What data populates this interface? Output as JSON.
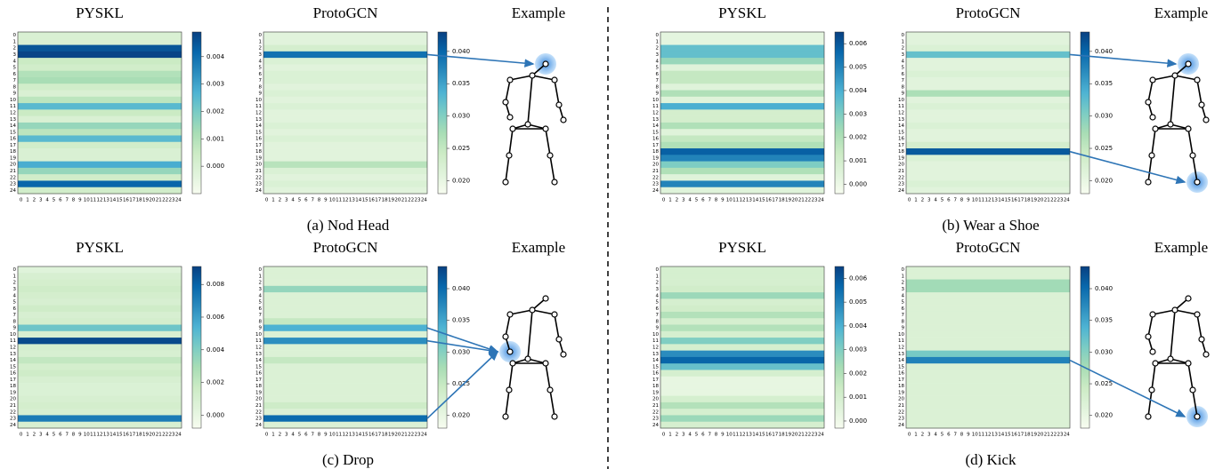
{
  "panels": [
    {
      "caption": "(a) Nod Head",
      "example_title": "Example"
    },
    {
      "caption": "(b) Wear a Shoe",
      "example_title": "Example"
    },
    {
      "caption": "(c) Drop",
      "example_title": "Example"
    },
    {
      "caption": "(d) Kick",
      "example_title": "Example"
    }
  ],
  "colormap": [
    "#f7fcf0",
    "#e0f3db",
    "#ccebc5",
    "#a8ddb5",
    "#7bccc4",
    "#4eb3d3",
    "#2b8cbe",
    "#0868ac",
    "#084081"
  ],
  "chart_data": [
    {
      "type": "heatmap",
      "title": "PYSKL",
      "categories": [
        0,
        1,
        2,
        3,
        4,
        5,
        6,
        7,
        8,
        9,
        10,
        11,
        12,
        13,
        14,
        15,
        16,
        17,
        18,
        19,
        20,
        21,
        22,
        23,
        24
      ],
      "values": [
        0,
        0,
        0.0045,
        0.0048,
        0.0005,
        0.0003,
        0.001,
        0.0012,
        0.0003,
        0,
        0.0008,
        0.0025,
        0.0005,
        0,
        0.0015,
        0.0008,
        0.0025,
        0.0003,
        0,
        0,
        0.0028,
        0.0015,
        0.0003,
        0.0042,
        0.0003
      ],
      "clim": [
        -0.001,
        0.0049
      ],
      "cticks": [
        {
          "value": 0,
          "label": "0.000"
        },
        0.001,
        0.002,
        0.003,
        0.004
      ]
    },
    {
      "type": "heatmap",
      "title": "ProtoGCN",
      "categories": [
        0,
        1,
        2,
        3,
        4,
        5,
        6,
        7,
        8,
        9,
        10,
        11,
        12,
        13,
        14,
        15,
        16,
        17,
        18,
        19,
        20,
        21,
        22,
        23,
        24
      ],
      "values": [
        0.021,
        0.021,
        0.023,
        0.039,
        0.022,
        0.021,
        0.022,
        0.022,
        0.021,
        0.022,
        0.021,
        0.022,
        0.021,
        0.021,
        0.022,
        0.021,
        0.022,
        0.021,
        0.021,
        0.021,
        0.026,
        0.022,
        0.021,
        0.022,
        0.021
      ],
      "clim": [
        0.018,
        0.043
      ],
      "cticks": [
        {
          "value": 0.02,
          "label": "0.020"
        },
        0.025,
        {
          "value": 0.03,
          "label": "0.030"
        },
        0.035,
        {
          "value": 0.04,
          "label": "0.040"
        }
      ]
    },
    {
      "type": "heatmap",
      "title": "PYSKL",
      "categories": [
        0,
        1,
        2,
        3,
        4,
        5,
        6,
        7,
        8,
        9,
        10,
        11,
        12,
        13,
        14,
        15,
        16,
        17,
        18,
        19,
        20,
        21,
        22,
        23,
        24
      ],
      "values": [
        0.0003,
        0.0003,
        0.0035,
        0.0035,
        0.0025,
        0.0005,
        0.0015,
        0.0015,
        0.0005,
        0.002,
        0.0005,
        0.004,
        0.001,
        0.001,
        0.002,
        0.0005,
        0.0015,
        0.002,
        0.0058,
        0.005,
        0.003,
        0.002,
        0.0005,
        0.005,
        0.0005
      ],
      "clim": [
        -0.0004,
        0.0065
      ],
      "cticks": [
        {
          "value": 0,
          "label": "0.000"
        },
        0.001,
        0.002,
        0.003,
        0.004,
        0.005,
        0.006
      ]
    },
    {
      "type": "heatmap",
      "title": "ProtoGCN",
      "categories": [
        0,
        1,
        2,
        3,
        4,
        5,
        6,
        7,
        8,
        9,
        10,
        11,
        12,
        13,
        14,
        15,
        16,
        17,
        18,
        19,
        20,
        21,
        22,
        23,
        24
      ],
      "values": [
        0.021,
        0.021,
        0.022,
        0.032,
        0.021,
        0.021,
        0.022,
        0.021,
        0.021,
        0.027,
        0.021,
        0.022,
        0.021,
        0.021,
        0.022,
        0.021,
        0.021,
        0.023,
        0.041,
        0.022,
        0.021,
        0.021,
        0.021,
        0.022,
        0.021
      ],
      "clim": [
        0.018,
        0.043
      ],
      "cticks": [
        {
          "value": 0.02,
          "label": "0.020"
        },
        0.025,
        {
          "value": 0.03,
          "label": "0.030"
        },
        0.035,
        {
          "value": 0.04,
          "label": "0.040"
        }
      ]
    },
    {
      "type": "heatmap",
      "title": "PYSKL",
      "categories": [
        0,
        1,
        2,
        3,
        4,
        5,
        6,
        7,
        8,
        9,
        10,
        11,
        12,
        13,
        14,
        15,
        16,
        17,
        18,
        19,
        20,
        21,
        22,
        23,
        24
      ],
      "values": [
        0.0005,
        0.001,
        0.0012,
        0.0015,
        0.0012,
        0.001,
        0.0015,
        0.001,
        0.0012,
        0.0045,
        0.001,
        0.0088,
        0.0012,
        0.001,
        0.002,
        0.0012,
        0.0015,
        0.001,
        0.0008,
        0.0008,
        0.001,
        0.0012,
        0.001,
        0.0072,
        0.001
      ],
      "clim": [
        -0.0008,
        0.0091
      ],
      "cticks": [
        {
          "value": 0,
          "label": "0.000"
        },
        0.002,
        0.004,
        0.006,
        0.008
      ]
    },
    {
      "type": "heatmap",
      "title": "ProtoGCN",
      "categories": [
        0,
        1,
        2,
        3,
        4,
        5,
        6,
        7,
        8,
        9,
        10,
        11,
        12,
        13,
        14,
        15,
        16,
        17,
        18,
        19,
        20,
        21,
        22,
        23,
        24
      ],
      "values": [
        0.022,
        0.022,
        0.022,
        0.029,
        0.022,
        0.022,
        0.022,
        0.022,
        0.025,
        0.034,
        0.022,
        0.037,
        0.022,
        0.022,
        0.025,
        0.022,
        0.022,
        0.022,
        0.022,
        0.022,
        0.022,
        0.024,
        0.022,
        0.04,
        0.022
      ],
      "clim": [
        0.018,
        0.0435
      ],
      "cticks": [
        {
          "value": 0.02,
          "label": "0.020"
        },
        0.025,
        {
          "value": 0.03,
          "label": "0.030"
        },
        0.035,
        {
          "value": 0.04,
          "label": "0.040"
        }
      ]
    },
    {
      "type": "heatmap",
      "title": "PYSKL",
      "categories": [
        0,
        1,
        2,
        3,
        4,
        5,
        6,
        7,
        8,
        9,
        10,
        11,
        12,
        13,
        14,
        15,
        16,
        17,
        18,
        19,
        20,
        21,
        22,
        23,
        24
      ],
      "values": [
        0.001,
        0.001,
        0.001,
        0.0012,
        0.0025,
        0.001,
        0.0012,
        0.002,
        0.001,
        0.002,
        0.001,
        0.003,
        0.001,
        0.0048,
        0.0057,
        0.0035,
        0.001,
        0.0003,
        0.0003,
        0.0003,
        0.001,
        0.002,
        0.001,
        0.0025,
        0.001
      ],
      "clim": [
        -0.0003,
        0.0065
      ],
      "cticks": [
        {
          "value": 0,
          "label": "0.000"
        },
        0.001,
        0.002,
        0.003,
        0.004,
        0.005,
        0.006
      ]
    },
    {
      "type": "heatmap",
      "title": "ProtoGCN",
      "categories": [
        0,
        1,
        2,
        3,
        4,
        5,
        6,
        7,
        8,
        9,
        10,
        11,
        12,
        13,
        14,
        15,
        16,
        17,
        18,
        19,
        20,
        21,
        22,
        23,
        24
      ],
      "values": [
        0.022,
        0.022,
        0.028,
        0.028,
        0.022,
        0.022,
        0.022,
        0.022,
        0.022,
        0.022,
        0.022,
        0.022,
        0.022,
        0.031,
        0.038,
        0.022,
        0.022,
        0.022,
        0.022,
        0.022,
        0.022,
        0.022,
        0.022,
        0.022,
        0.022
      ],
      "clim": [
        0.018,
        0.0435
      ],
      "cticks": [
        {
          "value": 0.02,
          "label": "0.020"
        },
        0.025,
        {
          "value": 0.03,
          "label": "0.030"
        },
        0.035,
        {
          "value": 0.04,
          "label": "0.040"
        }
      ]
    }
  ]
}
